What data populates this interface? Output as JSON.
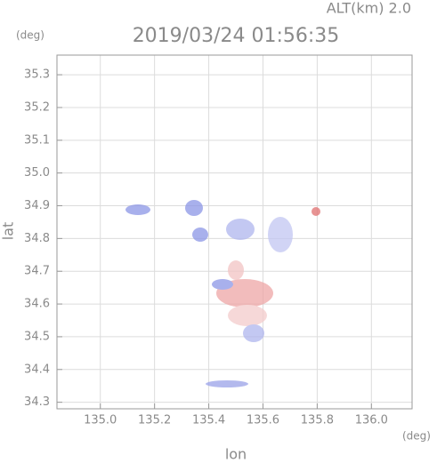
{
  "chart_data": {
    "type": "map",
    "title": "2019/03/24 01:56:35",
    "altitude_label": "ALT(km) 2.0",
    "x_label": "lon",
    "x_unit": "(deg)",
    "y_label": "lat",
    "y_unit": "(deg)",
    "xlim": [
      134.84,
      136.15
    ],
    "ylim": [
      34.28,
      35.36
    ],
    "xticks": [
      {
        "value": 135,
        "label": "135.0"
      },
      135.2,
      135.4,
      135.6,
      135.8,
      {
        "value": 136,
        "label": "136.0"
      }
    ],
    "yticks": [
      34.3,
      34.4,
      34.5,
      34.6,
      34.7,
      34.8,
      34.9,
      {
        "value": 35,
        "label": "35.0"
      },
      35.1,
      35.2,
      35.3
    ],
    "grid": true
  }
}
